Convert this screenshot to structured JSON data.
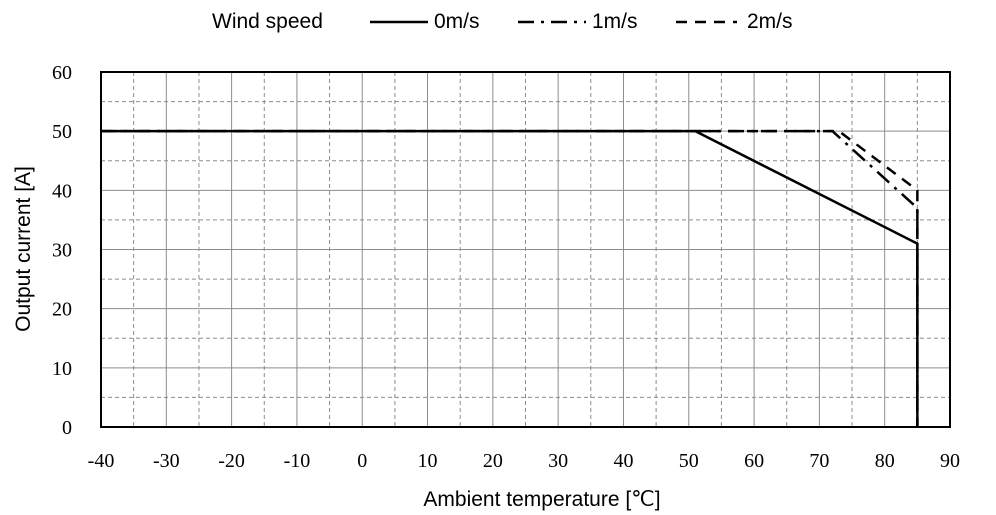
{
  "chart_data": {
    "type": "line",
    "xlabel": "Ambient temperature [℃]",
    "ylabel": "Output current [A]",
    "xlim": [
      -40,
      90
    ],
    "ylim": [
      0,
      60
    ],
    "xticks": [
      "-40",
      "-30",
      "-20",
      "-10",
      "0",
      "10",
      "20",
      "30",
      "40",
      "50",
      "60",
      "70",
      "80",
      "90"
    ],
    "yticks": [
      "0",
      "10",
      "20",
      "30",
      "40",
      "50",
      "60"
    ],
    "grid": true,
    "legend": {
      "title": "Wind speed",
      "placement": "top-center"
    },
    "series": [
      {
        "name": "0m/s",
        "style": "solid",
        "x": [
          -40,
          51,
          85,
          85
        ],
        "y": [
          50,
          50,
          31,
          0
        ]
      },
      {
        "name": "1m/s",
        "style": "dash-dot",
        "x": [
          -40,
          72,
          85,
          85
        ],
        "y": [
          50,
          50,
          37,
          0
        ]
      },
      {
        "name": "2m/s",
        "style": "dashed",
        "x": [
          -40,
          73,
          85,
          85
        ],
        "y": [
          50,
          50,
          40,
          0
        ]
      }
    ]
  }
}
